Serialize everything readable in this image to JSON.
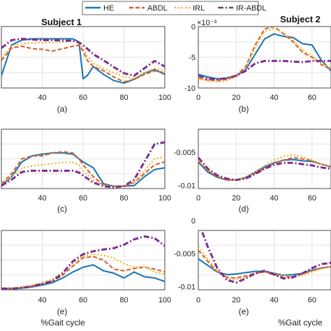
{
  "legend": {
    "items": [
      {
        "name": "HE",
        "color": "#1f77b4",
        "dash": "solid"
      },
      {
        "name": "ABDL",
        "color": "#d9622b",
        "dash": "dashed"
      },
      {
        "name": "IRL",
        "color": "#edb120",
        "dash": "dotted"
      },
      {
        "name": "IR-ABDL",
        "color": "#7e2f8e",
        "dash": "dashdot"
      }
    ]
  },
  "columns": [
    {
      "title": "Subject 1"
    },
    {
      "title": "Subject 2"
    }
  ],
  "xlabel": "%Gait cycle",
  "exponent_label": "×10⁻³",
  "chart_data": [
    {
      "type": "line",
      "panel_label": "(a)",
      "x_range": [
        20,
        100
      ],
      "ylim": [
        -10,
        0
      ],
      "xticks": [
        "40",
        "60",
        "80",
        "100"
      ],
      "yticks": [],
      "x": [
        20,
        25,
        30,
        35,
        40,
        45,
        50,
        55,
        58,
        60,
        62,
        65,
        70,
        75,
        80,
        85,
        90,
        95,
        100
      ],
      "series": [
        {
          "name": "HE",
          "values": [
            -8,
            -3,
            -2.2,
            -2.0,
            -2.0,
            -2.0,
            -2.0,
            -2.0,
            -2.5,
            -8.5,
            -8,
            -6.5,
            -7.8,
            -8.8,
            -9.2,
            -8.6,
            -7.6,
            -7.0,
            -7.8
          ]
        },
        {
          "name": "ABDL",
          "values": [
            -5.5,
            -3.5,
            -3.2,
            -3.6,
            -3.7,
            -4.0,
            -3.6,
            -3.2,
            -3.0,
            -4,
            -5.5,
            -6.5,
            -7.2,
            -8.2,
            -9.0,
            -8.6,
            -7.8,
            -7.2,
            -7.5
          ]
        },
        {
          "name": "IRL",
          "values": [
            -5.0,
            -3.2,
            -2.8,
            -2.7,
            -2.6,
            -2.6,
            -2.5,
            -2.4,
            -2.6,
            -3.5,
            -4.8,
            -6.0,
            -6.8,
            -7.5,
            -8.2,
            -8.4,
            -7.6,
            -6.8,
            -7.2
          ]
        },
        {
          "name": "IR-ABDL",
          "values": [
            -3.5,
            -2.2,
            -2.0,
            -2.1,
            -2.2,
            -2.2,
            -2.3,
            -2.3,
            -2.6,
            -3.0,
            -3.6,
            -4.5,
            -5.5,
            -6.6,
            -7.6,
            -8.0,
            -6.8,
            -5.6,
            -6.5
          ]
        }
      ]
    },
    {
      "type": "line",
      "panel_label": "(b)",
      "x_range": [
        0,
        70
      ],
      "ylim": [
        -10,
        0
      ],
      "xticks": [
        "0",
        "20",
        "40",
        "60"
      ],
      "yticks": [
        "0",
        "-5",
        "-10"
      ],
      "x": [
        0,
        5,
        10,
        15,
        20,
        25,
        30,
        35,
        40,
        45,
        50,
        55,
        60,
        65,
        70
      ],
      "series": [
        {
          "name": "HE",
          "values": [
            -7.8,
            -8.2,
            -8.5,
            -8.4,
            -8.0,
            -7.0,
            -4.5,
            -2.0,
            -1.2,
            -1.6,
            -1.8,
            -2.8,
            -3.0,
            -5.5,
            -7.2
          ]
        },
        {
          "name": "ABDL",
          "values": [
            -8.4,
            -8.7,
            -8.8,
            -8.6,
            -8.0,
            -6.5,
            -3.0,
            -0.4,
            0.0,
            -1.2,
            -2.5,
            -4.2,
            -5.0,
            -6.2,
            -7.0
          ]
        },
        {
          "name": "IRL",
          "values": [
            -8.5,
            -8.8,
            -9.0,
            -8.8,
            -8.2,
            -6.8,
            -3.5,
            -0.8,
            -0.3,
            -1.0,
            -2.2,
            -3.8,
            -4.8,
            -6.0,
            -6.8
          ]
        },
        {
          "name": "IR-ABDL",
          "values": [
            -8.0,
            -8.5,
            -8.6,
            -8.4,
            -8.0,
            -7.2,
            -6.0,
            -5.6,
            -5.6,
            -5.6,
            -5.7,
            -5.8,
            -5.6,
            -5.6,
            -5.6
          ]
        }
      ]
    },
    {
      "type": "line",
      "panel_label": "(c)",
      "x_range": [
        20,
        100
      ],
      "ylim": [
        -10,
        0
      ],
      "xticks": [
        "40",
        "60",
        "80",
        "100"
      ],
      "yticks": [],
      "x": [
        20,
        25,
        30,
        35,
        40,
        45,
        50,
        55,
        58,
        60,
        65,
        70,
        75,
        80,
        85,
        90,
        95,
        100
      ],
      "series": [
        {
          "name": "HE",
          "values": [
            -9.5,
            -8.0,
            -5.5,
            -4.5,
            -4.2,
            -4.0,
            -4.0,
            -4.2,
            -5.0,
            -5.5,
            -6.5,
            -9.2,
            -9.6,
            -9.6,
            -9.5,
            -8.0,
            -6.8,
            -6.5
          ]
        },
        {
          "name": "ABDL",
          "values": [
            -9.2,
            -7.5,
            -5.0,
            -4.5,
            -4.5,
            -4.0,
            -3.8,
            -4.0,
            -5.0,
            -6.0,
            -8.0,
            -9.4,
            -9.6,
            -9.6,
            -9.0,
            -7.5,
            -6.0,
            -5.5
          ]
        },
        {
          "name": "IRL",
          "values": [
            -9.2,
            -8.0,
            -6.5,
            -6.2,
            -6.0,
            -5.8,
            -5.6,
            -5.6,
            -6.0,
            -7.0,
            -8.6,
            -9.4,
            -9.7,
            -9.6,
            -9.0,
            -7.0,
            -5.0,
            -4.6
          ]
        },
        {
          "name": "IR-ABDL",
          "values": [
            -9.5,
            -8.5,
            -7.2,
            -7.0,
            -7.0,
            -7.0,
            -7.0,
            -7.0,
            -7.3,
            -7.8,
            -9.0,
            -9.6,
            -9.8,
            -9.6,
            -8.5,
            -5.5,
            -2.5,
            -2.2
          ]
        }
      ]
    },
    {
      "type": "line",
      "panel_label": "(d)",
      "x_range": [
        0,
        70
      ],
      "ylim": [
        -0.0105,
        -0.0015
      ],
      "xticks": [
        "0",
        "20",
        "40",
        "60"
      ],
      "yticks": [
        "-0.005",
        "-0.01"
      ],
      "x": [
        0,
        5,
        10,
        15,
        20,
        25,
        30,
        35,
        40,
        45,
        50,
        55,
        60,
        65,
        70
      ],
      "series": [
        {
          "name": "HE",
          "values": [
            -0.0065,
            -0.008,
            -0.0088,
            -0.0092,
            -0.0092,
            -0.0088,
            -0.008,
            -0.0072,
            -0.0066,
            -0.0062,
            -0.0061,
            -0.0063,
            -0.0064,
            -0.0068,
            -0.0072
          ]
        },
        {
          "name": "ABDL",
          "values": [
            -0.0063,
            -0.0078,
            -0.0087,
            -0.0092,
            -0.0092,
            -0.0089,
            -0.0082,
            -0.0074,
            -0.0067,
            -0.0062,
            -0.0058,
            -0.006,
            -0.0063,
            -0.0068,
            -0.0072
          ]
        },
        {
          "name": "IRL",
          "values": [
            -0.0062,
            -0.0077,
            -0.0086,
            -0.0091,
            -0.0092,
            -0.0088,
            -0.008,
            -0.007,
            -0.0062,
            -0.0056,
            -0.0054,
            -0.0057,
            -0.0062,
            -0.0068,
            -0.0073
          ]
        },
        {
          "name": "IR-ABDL",
          "values": [
            -0.0058,
            -0.0075,
            -0.0085,
            -0.009,
            -0.0092,
            -0.009,
            -0.0083,
            -0.0075,
            -0.0069,
            -0.0066,
            -0.0066,
            -0.0068,
            -0.007,
            -0.0073,
            -0.0075
          ]
        }
      ]
    },
    {
      "type": "line",
      "panel_label": "(e)",
      "x_range": [
        20,
        100
      ],
      "ylim": [
        -10,
        0
      ],
      "xticks": [
        "40",
        "60",
        "80",
        "100"
      ],
      "yticks": [],
      "x": [
        20,
        25,
        30,
        35,
        40,
        45,
        50,
        55,
        60,
        65,
        70,
        75,
        80,
        85,
        90,
        95,
        100
      ],
      "series": [
        {
          "name": "HE",
          "values": [
            -9.8,
            -9.8,
            -9.7,
            -9.5,
            -9.2,
            -8.8,
            -8.0,
            -7.0,
            -6.2,
            -5.8,
            -6.8,
            -7.2,
            -8.0,
            -7.0,
            -7.8,
            -8.0,
            -8.6
          ]
        },
        {
          "name": "ABDL",
          "values": [
            -9.8,
            -9.8,
            -9.6,
            -9.4,
            -9.0,
            -8.6,
            -7.5,
            -6.0,
            -4.6,
            -4.4,
            -5.0,
            -6.5,
            -6.8,
            -6.4,
            -6.2,
            -6.5,
            -7.0
          ]
        },
        {
          "name": "IRL",
          "values": [
            -9.7,
            -9.7,
            -9.5,
            -9.2,
            -8.8,
            -8.2,
            -7.0,
            -5.5,
            -4.3,
            -4.0,
            -4.2,
            -4.6,
            -5.6,
            -6.2,
            -6.0,
            -7.0,
            -7.4
          ]
        },
        {
          "name": "IR-ABDL",
          "values": [
            -9.8,
            -9.8,
            -9.7,
            -9.4,
            -9.0,
            -8.5,
            -7.2,
            -5.2,
            -4.0,
            -3.5,
            -3.2,
            -3.0,
            -2.4,
            -1.5,
            -1.0,
            -1.3,
            -2.6
          ]
        }
      ]
    },
    {
      "type": "line",
      "panel_label": "(e)",
      "x_range": [
        0,
        70
      ],
      "ylim": [
        -0.0105,
        -0.0015
      ],
      "xticks": [
        "0",
        "20",
        "40",
        "60"
      ],
      "yticks": [
        "0",
        "-0.005",
        "-0.01"
      ],
      "x": [
        0,
        5,
        10,
        15,
        20,
        25,
        30,
        35,
        40,
        45,
        50,
        55,
        60,
        65,
        70
      ],
      "series": [
        {
          "name": "HE",
          "values": [
            -0.0058,
            -0.0068,
            -0.0078,
            -0.0082,
            -0.0081,
            -0.0079,
            -0.0077,
            -0.0077,
            -0.008,
            -0.0083,
            -0.0082,
            -0.008,
            -0.0075,
            -0.0072,
            -0.007
          ]
        },
        {
          "name": "ABDL",
          "values": [
            -0.0045,
            -0.0062,
            -0.0078,
            -0.0086,
            -0.0087,
            -0.0084,
            -0.008,
            -0.0078,
            -0.0082,
            -0.0086,
            -0.0085,
            -0.0081,
            -0.0076,
            -0.0072,
            -0.007
          ]
        },
        {
          "name": "IRL",
          "values": [
            -0.004,
            -0.0058,
            -0.0076,
            -0.0088,
            -0.0089,
            -0.0086,
            -0.0081,
            -0.0078,
            -0.0079,
            -0.0083,
            -0.0085,
            -0.0083,
            -0.0078,
            -0.0073,
            -0.007
          ]
        },
        {
          "name": "IR-ABDL",
          "values": [
            -0.0002,
            -0.004,
            -0.0072,
            -0.009,
            -0.0094,
            -0.0088,
            -0.008,
            -0.0076,
            -0.0082,
            -0.0088,
            -0.0086,
            -0.008,
            -0.0072,
            -0.0066,
            -0.0064
          ]
        }
      ]
    }
  ]
}
